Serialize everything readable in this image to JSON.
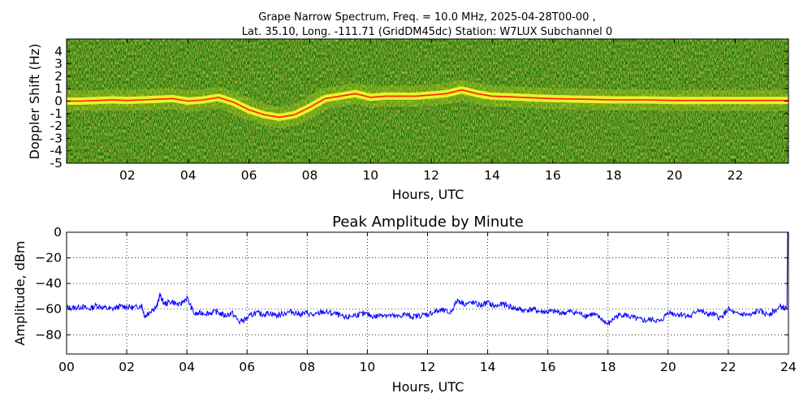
{
  "figure": {
    "title_line1": "Grape Narrow Spectrum, Freq. = 10.0 MHz, 2025-04-28T00-00 ,",
    "title_line2": "Lat.  35.10, Long. -111.71 (GridDM45dc) Station: W7LUX Subchannel 0"
  },
  "chart_data": [
    {
      "type": "heatmap",
      "title": "",
      "xlabel": "Hours, UTC",
      "ylabel": "Doppler Shift (Hz)",
      "xlim": [
        0,
        23.75
      ],
      "ylim": [
        -5,
        5
      ],
      "x_ticks": [
        2,
        4,
        6,
        8,
        10,
        12,
        14,
        16,
        18,
        20,
        22
      ],
      "x_tick_labels": [
        "02",
        "04",
        "06",
        "08",
        "10",
        "12",
        "14",
        "16",
        "18",
        "20",
        "22"
      ],
      "y_ticks": [
        -5,
        -4,
        -3,
        -2,
        -1,
        0,
        1,
        2,
        3,
        4
      ],
      "y_tick_labels": [
        "-5",
        "-4",
        "-3",
        "-2",
        "-1",
        "0",
        "1",
        "2",
        "3",
        "4"
      ],
      "colors": {
        "background": "#1f7a10",
        "mid": "#b5d21a",
        "high": "#ffff30",
        "peak": "#ff2000"
      },
      "doppler_trace": {
        "x": [
          0,
          0.5,
          1,
          1.5,
          2,
          2.5,
          3,
          3.5,
          4,
          4.5,
          5,
          5.5,
          6,
          6.5,
          7,
          7.5,
          8,
          8.5,
          9,
          9.5,
          10,
          10.5,
          11,
          11.5,
          12,
          12.5,
          13,
          13.5,
          14,
          14.5,
          15,
          15.5,
          16,
          17,
          18,
          19,
          20,
          21,
          22,
          23,
          23.75
        ],
        "y": [
          0,
          0,
          0.05,
          0.1,
          0.05,
          0.1,
          0.15,
          0.2,
          0.0,
          0.1,
          0.3,
          -0.1,
          -0.7,
          -1.1,
          -1.3,
          -1.1,
          -0.5,
          0.2,
          0.4,
          0.6,
          0.3,
          0.4,
          0.4,
          0.4,
          0.5,
          0.6,
          0.9,
          0.6,
          0.4,
          0.35,
          0.3,
          0.25,
          0.2,
          0.15,
          0.1,
          0.1,
          0.05,
          0.05,
          0.05,
          0.05,
          0.05
        ]
      }
    },
    {
      "type": "line",
      "title": "Peak Amplitude by Minute",
      "xlabel": "Hours, UTC",
      "ylabel": "Amplitude, dBm",
      "xlim": [
        0,
        24
      ],
      "ylim": [
        -95,
        0
      ],
      "grid": true,
      "x_ticks": [
        0,
        2,
        4,
        6,
        8,
        10,
        12,
        14,
        16,
        18,
        20,
        22,
        24
      ],
      "x_tick_labels": [
        "00",
        "02",
        "04",
        "06",
        "08",
        "10",
        "12",
        "14",
        "16",
        "18",
        "20",
        "22",
        "24"
      ],
      "y_ticks": [
        0,
        -20,
        -40,
        -60,
        -80
      ],
      "y_tick_labels": [
        "0",
        "−20",
        "−40",
        "−60",
        "−80"
      ],
      "line_color": "#0000ff",
      "series": [
        {
          "x": [
            0,
            0.25,
            0.5,
            0.75,
            1,
            1.25,
            1.5,
            1.75,
            2,
            2.25,
            2.5,
            2.6,
            2.75,
            3,
            3.1,
            3.25,
            3.5,
            3.75,
            4,
            4.25,
            4.5,
            4.75,
            5,
            5.25,
            5.5,
            5.75,
            6,
            6.25,
            6.5,
            6.75,
            7,
            7.25,
            7.5,
            7.75,
            8,
            8.25,
            8.5,
            8.75,
            9,
            9.25,
            9.5,
            9.75,
            10,
            10.25,
            10.5,
            10.75,
            11,
            11.25,
            11.5,
            11.75,
            12,
            12.25,
            12.5,
            12.75,
            13,
            13.25,
            13.5,
            13.75,
            14,
            14.25,
            14.5,
            14.75,
            15,
            15.25,
            15.5,
            15.75,
            16,
            16.25,
            16.5,
            16.75,
            17,
            17.25,
            17.5,
            17.75,
            18,
            18.25,
            18.5,
            18.75,
            19,
            19.25,
            19.5,
            19.75,
            20,
            20.25,
            20.5,
            20.75,
            21,
            21.25,
            21.5,
            21.75,
            22,
            22.25,
            22.5,
            22.75,
            23,
            23.25,
            23.5,
            23.75,
            23.95
          ],
          "values": [
            -59,
            -59,
            -58,
            -60,
            -57,
            -59,
            -60,
            -58,
            -58,
            -59,
            -57,
            -66,
            -62,
            -58,
            -49,
            -56,
            -54,
            -57,
            -51,
            -64,
            -63,
            -63,
            -62,
            -65,
            -63,
            -70,
            -67,
            -63,
            -64,
            -63,
            -65,
            -63,
            -62,
            -64,
            -63,
            -65,
            -62,
            -63,
            -64,
            -67,
            -65,
            -64,
            -64,
            -66,
            -64,
            -65,
            -66,
            -64,
            -66,
            -65,
            -64,
            -62,
            -61,
            -63,
            -53,
            -56,
            -55,
            -57,
            -55,
            -58,
            -56,
            -58,
            -60,
            -61,
            -60,
            -62,
            -62,
            -62,
            -63,
            -62,
            -63,
            -65,
            -64,
            -67,
            -72,
            -66,
            -64,
            -66,
            -68,
            -69,
            -68,
            -70,
            -62,
            -64,
            -64,
            -66,
            -60,
            -64,
            -64,
            -67,
            -60,
            -64,
            -64,
            -65,
            -61,
            -64,
            -62,
            -58,
            -60
          ]
        }
      ]
    }
  ]
}
